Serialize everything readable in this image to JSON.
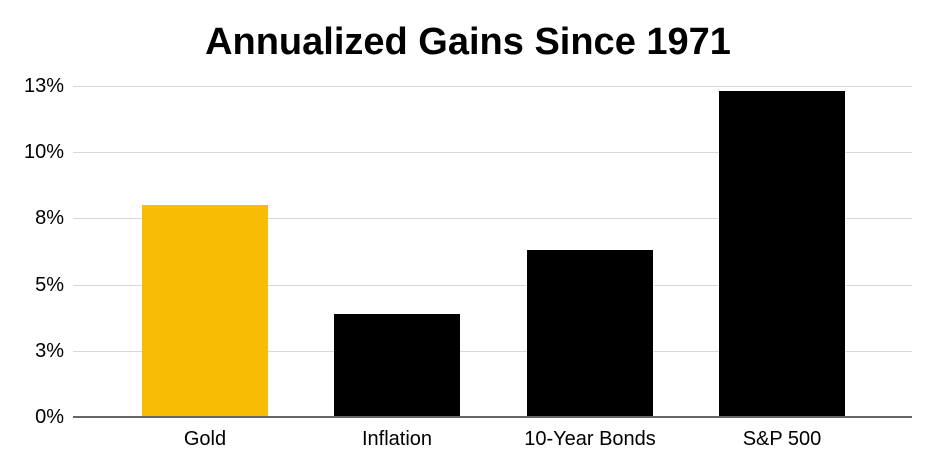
{
  "page": {
    "background_color": "#ffffff"
  },
  "chart_data": {
    "type": "bar",
    "title": "Annualized Gains Since 1971",
    "categories": [
      "Gold",
      "Inflation",
      "10-Year Bonds",
      "S&P 500"
    ],
    "values": [
      8.0,
      3.9,
      6.3,
      12.3
    ],
    "bar_colors": [
      "#F9BC05",
      "#000000",
      "#000000",
      "#000000"
    ],
    "xlabel": "",
    "ylabel": "",
    "ylim": [
      0,
      12.5
    ],
    "ytick_values": [
      0,
      2.5,
      5,
      7.5,
      10,
      12.5
    ],
    "ytick_labels": [
      "0%",
      "3%",
      "5%",
      "8%",
      "10%",
      "13%"
    ],
    "grid": "horizontal",
    "legend": "none",
    "colors": {
      "gridline": "#d9d9d9",
      "axis_line": "#666666",
      "text": "#000000",
      "title_text": "#000000",
      "accent_gold": "#F9BC05",
      "bar_black": "#000000"
    }
  }
}
